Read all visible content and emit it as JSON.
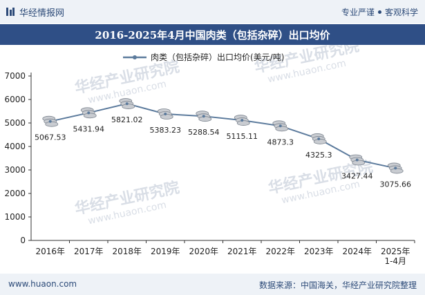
{
  "header": {
    "brand": "华经情报网",
    "slogan_left": "专业严谨",
    "slogan_right": "客观科学"
  },
  "title": "2016-2025年4月中国肉类（包括杂碎）出口均价",
  "watermark": {
    "text": "华经产业研究院",
    "url": "www.huaon.com"
  },
  "chart_data": {
    "type": "line",
    "title": "2016-2025年4月中国肉类（包括杂碎）出口均价",
    "categories": [
      "2016年",
      "2017年",
      "2018年",
      "2019年",
      "2020年",
      "2021年",
      "2022年",
      "2023年",
      "2024年",
      "2025年 1-4月"
    ],
    "series": [
      {
        "name": "肉类（包括杂碎）出口均价(美元/吨)",
        "values": [
          5067.53,
          5431.94,
          5821.02,
          5383.23,
          5288.54,
          5115.11,
          4873.3,
          4325.3,
          3427.44,
          3075.66
        ],
        "labels": [
          "5067.53",
          "5431.94",
          "5821.02",
          "5383.23",
          "5288.54",
          "5115.11",
          "4873.3",
          "4325.3",
          "3427.44",
          "3075.66"
        ],
        "color": "#5b7a9c"
      }
    ],
    "y_ticks": [
      "0",
      "1000",
      "2000",
      "3000",
      "4000",
      "5000",
      "6000",
      "7000"
    ],
    "ylim": [
      0,
      7000
    ],
    "xlabel": "",
    "ylabel": "",
    "legend": "top-center",
    "grid": false
  },
  "footer": {
    "website": "www.huaon.com",
    "source": "数据来源：中国海关，华经产业研究院整理"
  }
}
